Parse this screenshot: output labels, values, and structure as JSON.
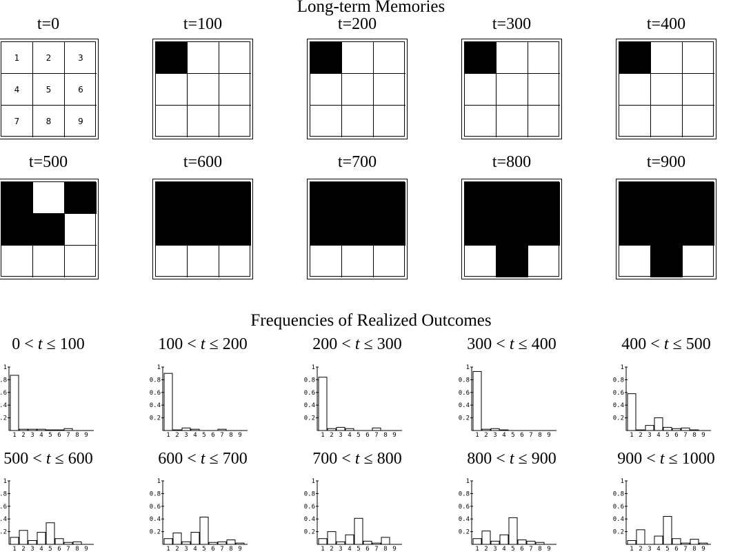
{
  "memories_title": "Long-term Memories",
  "frequencies_title": "Frequencies of Realized Outcomes",
  "cell_numbers": [
    "1",
    "2",
    "3",
    "4",
    "5",
    "6",
    "7",
    "8",
    "9"
  ],
  "chart_data": [
    {
      "type": "heatmap",
      "title": "Long-term Memories",
      "grids": [
        {
          "label": "t=0",
          "filled": [
            0,
            0,
            0,
            0,
            0,
            0,
            0,
            0,
            0
          ],
          "show_numbers": true
        },
        {
          "label": "t=100",
          "filled": [
            1,
            0,
            0,
            0,
            0,
            0,
            0,
            0,
            0
          ]
        },
        {
          "label": "t=200",
          "filled": [
            1,
            0,
            0,
            0,
            0,
            0,
            0,
            0,
            0
          ]
        },
        {
          "label": "t=300",
          "filled": [
            1,
            0,
            0,
            0,
            0,
            0,
            0,
            0,
            0
          ]
        },
        {
          "label": "t=400",
          "filled": [
            1,
            0,
            0,
            0,
            0,
            0,
            0,
            0,
            0
          ]
        },
        {
          "label": "t=500",
          "filled": [
            1,
            0,
            1,
            1,
            1,
            0,
            0,
            0,
            0
          ]
        },
        {
          "label": "t=600",
          "filled": [
            1,
            1,
            1,
            1,
            1,
            1,
            0,
            0,
            0
          ]
        },
        {
          "label": "t=700",
          "filled": [
            1,
            1,
            1,
            1,
            1,
            1,
            0,
            0,
            0
          ]
        },
        {
          "label": "t=800",
          "filled": [
            1,
            1,
            1,
            1,
            1,
            1,
            0,
            1,
            0
          ]
        },
        {
          "label": "t=900",
          "filled": [
            1,
            1,
            1,
            1,
            1,
            1,
            0,
            1,
            0
          ]
        }
      ]
    },
    {
      "type": "bar",
      "title": "Frequencies of Realized Outcomes",
      "categories": [
        "1",
        "2",
        "3",
        "4",
        "5",
        "6",
        "7",
        "8",
        "9"
      ],
      "ylim": [
        0,
        1
      ],
      "yticks": [
        "1",
        "0.8",
        "0.6",
        "0.4",
        "0.2"
      ],
      "panels": [
        {
          "pre": "0 <",
          "var": "t",
          "post": "≤ 100",
          "values": [
            0.87,
            0.02,
            0.02,
            0.02,
            0.01,
            0.01,
            0.03,
            0.0,
            0.0
          ]
        },
        {
          "pre": "100 <",
          "var": "t",
          "post": "≤ 200",
          "values": [
            0.9,
            0.01,
            0.04,
            0.02,
            0.0,
            0.0,
            0.02,
            0.0,
            0.0
          ]
        },
        {
          "pre": "200 <",
          "var": "t",
          "post": "≤ 300",
          "values": [
            0.84,
            0.03,
            0.05,
            0.03,
            0.0,
            0.0,
            0.04,
            0.0,
            0.0
          ]
        },
        {
          "pre": "300 <",
          "var": "t",
          "post": "≤ 400",
          "values": [
            0.93,
            0.02,
            0.03,
            0.01,
            0.0,
            0.0,
            0.0,
            0.0,
            0.0
          ]
        },
        {
          "pre": "400 <",
          "var": "t",
          "post": "≤ 500",
          "values": [
            0.58,
            0.01,
            0.08,
            0.2,
            0.05,
            0.03,
            0.04,
            0.01,
            0.0
          ]
        },
        {
          "pre": "500 <",
          "var": "t",
          "post": "≤ 600",
          "values": [
            0.11,
            0.22,
            0.06,
            0.19,
            0.34,
            0.09,
            0.03,
            0.04,
            0.0
          ]
        },
        {
          "pre": "600 <",
          "var": "t",
          "post": "≤ 700",
          "values": [
            0.09,
            0.18,
            0.04,
            0.19,
            0.43,
            0.03,
            0.04,
            0.07,
            0.02
          ]
        },
        {
          "pre": "700 <",
          "var": "t",
          "post": "≤ 800",
          "values": [
            0.09,
            0.2,
            0.04,
            0.15,
            0.41,
            0.05,
            0.02,
            0.11,
            0.0
          ]
        },
        {
          "pre": "800 <",
          "var": "t",
          "post": "≤ 900",
          "values": [
            0.09,
            0.21,
            0.05,
            0.15,
            0.42,
            0.07,
            0.05,
            0.03,
            0.0
          ]
        },
        {
          "pre": "900 <",
          "var": "t",
          "post": "≤ 1000",
          "values": [
            0.06,
            0.23,
            0.0,
            0.13,
            0.44,
            0.09,
            0.02,
            0.08,
            0.02
          ]
        }
      ]
    }
  ]
}
